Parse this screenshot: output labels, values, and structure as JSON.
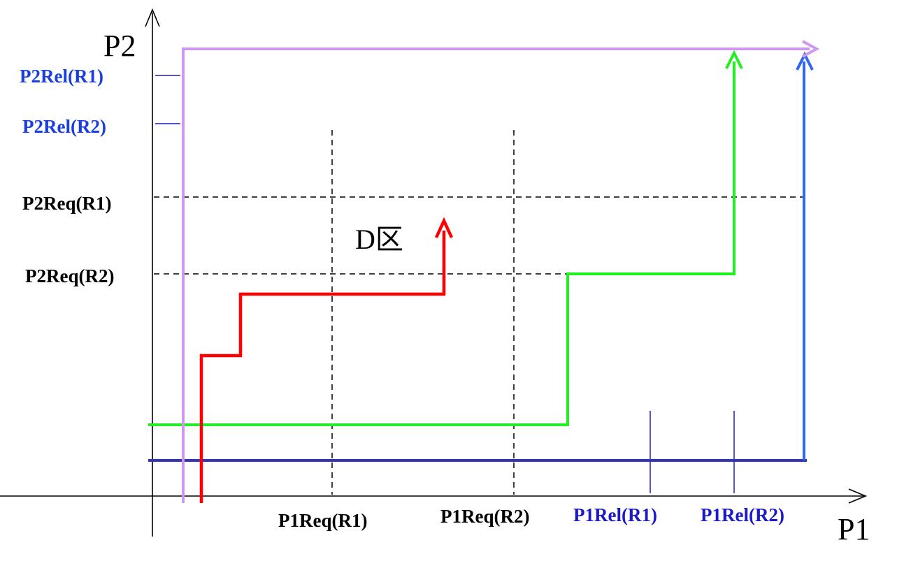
{
  "axes": {
    "x_label": "P1",
    "y_label": "P2"
  },
  "x_ticks": {
    "p1_req_r1": "P1Req(R1)",
    "p1_req_r2": "P1Req(R2)",
    "p1_rel_r1": "P1Rel(R1)",
    "p1_rel_r2": "P1Rel(R2)"
  },
  "y_ticks": {
    "p2_rel_r1": "P2Rel(R1)",
    "p2_rel_r2": "P2Rel(R2)",
    "p2_req_r1": "P2Req(R1)",
    "p2_req_r2": "P2Req(R2)"
  },
  "region_label": "D区",
  "colors": {
    "red_path": "#ff0000",
    "green_path": "#22ee22",
    "blue_path": "#3366ee",
    "navy_line": "#3333bb",
    "purple_path": "#cc99ee",
    "release_text": "#1a1acc"
  }
}
